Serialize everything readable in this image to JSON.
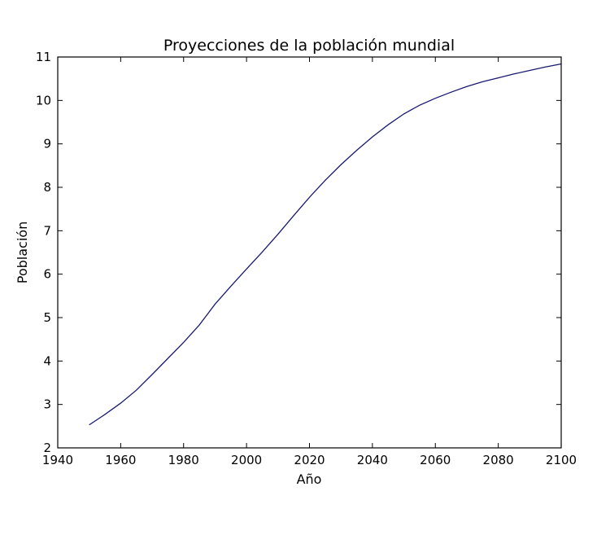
{
  "chart_data": {
    "type": "line",
    "title": "Proyecciones de la población mundial",
    "xlabel": "Año",
    "ylabel": "Población",
    "xlim": [
      1940,
      2100
    ],
    "ylim": [
      2,
      11
    ],
    "xticks": [
      1940,
      1960,
      1980,
      2000,
      2020,
      2040,
      2060,
      2080,
      2100
    ],
    "yticks": [
      2,
      3,
      4,
      5,
      6,
      7,
      8,
      9,
      10,
      11
    ],
    "grid": false,
    "line_color": "#191970",
    "series": [
      {
        "x": [
          1950,
          1955,
          1960,
          1965,
          1970,
          1975,
          1980,
          1985,
          1990,
          1995,
          2000,
          2005,
          2010,
          2015,
          2020,
          2025,
          2030,
          2035,
          2040,
          2045,
          2050,
          2055,
          2060,
          2065,
          2070,
          2075,
          2080,
          2085,
          2090,
          2095,
          2100
        ],
        "y": [
          2.53,
          2.77,
          3.03,
          3.33,
          3.69,
          4.06,
          4.43,
          4.83,
          5.31,
          5.72,
          6.12,
          6.51,
          6.92,
          7.35,
          7.77,
          8.16,
          8.52,
          8.85,
          9.16,
          9.44,
          9.69,
          9.89,
          10.05,
          10.19,
          10.32,
          10.43,
          10.52,
          10.61,
          10.69,
          10.77,
          10.84
        ]
      }
    ]
  }
}
